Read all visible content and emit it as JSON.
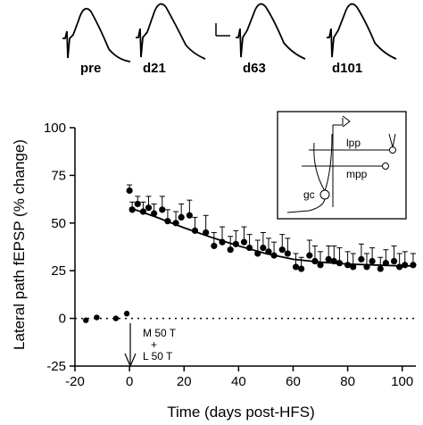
{
  "chart_data": {
    "type": "scatter",
    "xlabel": "Time (days post-HFS)",
    "ylabel": "Lateral path fEPSP (% change)",
    "xlim": [
      -20,
      105
    ],
    "ylim": [
      -25,
      100
    ],
    "xticks": [
      -20,
      0,
      20,
      40,
      60,
      80,
      100
    ],
    "yticks": [
      -25,
      0,
      25,
      50,
      75,
      100
    ],
    "zero_line": "dotted",
    "grid": false,
    "baseline": {
      "name": "pre-HFS",
      "x": [
        -16,
        -12,
        -5,
        -1
      ],
      "y": [
        -1,
        0.5,
        0,
        2.5
      ]
    },
    "series": [
      {
        "x": [
          0,
          1,
          3,
          5,
          7,
          9,
          12,
          14,
          17,
          19,
          22,
          24,
          28,
          31,
          34,
          37,
          39,
          42,
          44,
          47,
          49,
          51,
          53,
          56,
          58,
          61,
          63,
          66,
          68,
          70,
          73,
          75,
          77,
          80,
          82,
          85,
          87,
          89,
          92,
          94,
          97,
          99,
          101,
          104
        ],
        "y": [
          67,
          57,
          60,
          56,
          58,
          55,
          57,
          51,
          50,
          53,
          54,
          46,
          45,
          38,
          40,
          36,
          39,
          40,
          37,
          34,
          37,
          35,
          33,
          36,
          34,
          27,
          26,
          33,
          30,
          28,
          31,
          30,
          29,
          28,
          27,
          31,
          27,
          30,
          26,
          29,
          30,
          27,
          28,
          28
        ],
        "err": [
          3,
          4,
          4,
          5,
          6,
          5,
          7,
          6,
          6,
          7,
          8,
          7,
          9,
          7,
          8,
          7,
          7,
          8,
          7,
          7,
          8,
          7,
          7,
          8,
          8,
          7,
          6,
          8,
          8,
          7,
          7,
          8,
          8,
          7,
          7,
          8,
          7,
          7,
          6,
          7,
          8,
          7,
          7,
          6
        ]
      }
    ],
    "fit_curve": {
      "x": [
        0,
        10,
        20,
        30,
        40,
        50,
        60,
        70,
        80,
        90,
        100,
        105
      ],
      "y": [
        58,
        53,
        47.5,
        42.5,
        38,
        34,
        31,
        29.5,
        28.5,
        28,
        27.5,
        27.5
      ]
    },
    "event_marker": {
      "x": 0,
      "annotation": [
        "M 50 T",
        "+",
        "L 50 T"
      ]
    },
    "trace_labels": [
      "pre",
      "d21",
      "d63",
      "d101"
    ],
    "inset_labels": [
      "lpp",
      "mpp",
      "gc"
    ]
  }
}
